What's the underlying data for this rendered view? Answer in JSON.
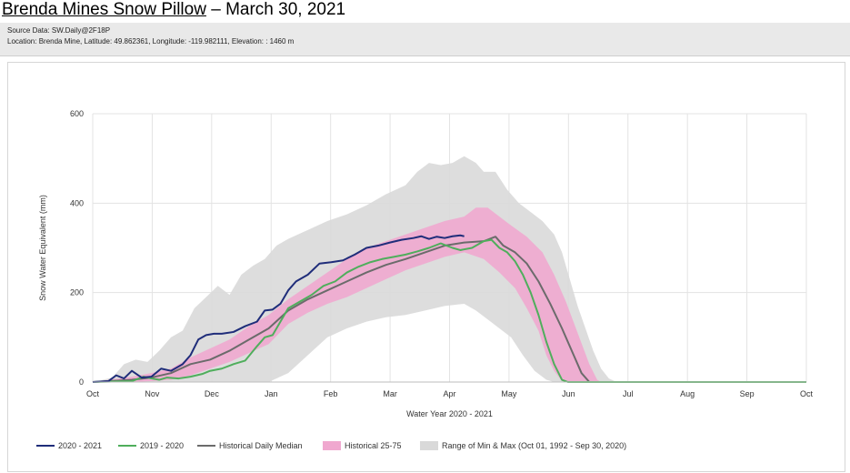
{
  "header": {
    "title_link": "Brenda Mines Snow Pillow",
    "title_rest": " – March 30, 2021",
    "source": "Source Data: SW.Daily@2F18P",
    "location": "Location: Brenda Mine, Latitude: 49.862361, Longitude: -119.982111, Elevation: : 1460 m"
  },
  "colors": {
    "s2021": "#1f2d7a",
    "s2020": "#4fae5c",
    "median": "#6b6b6b",
    "p2575": "#f0a8cf",
    "minmax": "#d9d9d9"
  },
  "chart_data": {
    "type": "line",
    "title": "",
    "xlabel": "Water Year 2020 - 2021",
    "ylabel": "Snow Water Equivalent (mm)",
    "ylim": [
      0,
      600
    ],
    "yticks": [
      0,
      200,
      400,
      600
    ],
    "xticks": [
      "Oct",
      "Nov",
      "Dec",
      "Jan",
      "Feb",
      "Mar",
      "Apr",
      "May",
      "Jun",
      "Jul",
      "Aug",
      "Sep",
      "Oct"
    ],
    "x_unit": "day of water year (0 = Oct 1)",
    "grid": true,
    "legend_position": "bottom",
    "series": [
      {
        "name": "2020 - 2021",
        "type": "line",
        "points": [
          [
            0,
            0
          ],
          [
            8,
            2
          ],
          [
            12,
            15
          ],
          [
            16,
            8
          ],
          [
            20,
            25
          ],
          [
            25,
            10
          ],
          [
            30,
            12
          ],
          [
            35,
            30
          ],
          [
            40,
            25
          ],
          [
            46,
            40
          ],
          [
            50,
            60
          ],
          [
            54,
            95
          ],
          [
            58,
            105
          ],
          [
            62,
            108
          ],
          [
            66,
            108
          ],
          [
            72,
            112
          ],
          [
            78,
            125
          ],
          [
            84,
            135
          ],
          [
            88,
            160
          ],
          [
            92,
            162
          ],
          [
            96,
            175
          ],
          [
            100,
            205
          ],
          [
            104,
            225
          ],
          [
            110,
            240
          ],
          [
            116,
            265
          ],
          [
            122,
            268
          ],
          [
            128,
            272
          ],
          [
            134,
            285
          ],
          [
            140,
            300
          ],
          [
            146,
            305
          ],
          [
            152,
            312
          ],
          [
            158,
            318
          ],
          [
            164,
            322
          ],
          [
            168,
            326
          ],
          [
            172,
            320
          ],
          [
            176,
            325
          ],
          [
            180,
            322
          ],
          [
            184,
            326
          ],
          [
            188,
            328
          ],
          [
            190,
            326
          ]
        ]
      },
      {
        "name": "2019 - 2020",
        "type": "line",
        "points": [
          [
            0,
            0
          ],
          [
            20,
            2
          ],
          [
            26,
            12
          ],
          [
            30,
            8
          ],
          [
            34,
            5
          ],
          [
            38,
            10
          ],
          [
            44,
            8
          ],
          [
            50,
            12
          ],
          [
            56,
            18
          ],
          [
            60,
            25
          ],
          [
            66,
            30
          ],
          [
            72,
            40
          ],
          [
            78,
            48
          ],
          [
            84,
            80
          ],
          [
            88,
            100
          ],
          [
            92,
            105
          ],
          [
            96,
            135
          ],
          [
            100,
            165
          ],
          [
            106,
            180
          ],
          [
            112,
            195
          ],
          [
            118,
            215
          ],
          [
            124,
            225
          ],
          [
            130,
            245
          ],
          [
            136,
            258
          ],
          [
            142,
            268
          ],
          [
            148,
            275
          ],
          [
            154,
            280
          ],
          [
            160,
            285
          ],
          [
            166,
            292
          ],
          [
            172,
            300
          ],
          [
            178,
            310
          ],
          [
            184,
            300
          ],
          [
            188,
            295
          ],
          [
            194,
            300
          ],
          [
            200,
            315
          ],
          [
            204,
            318
          ],
          [
            208,
            300
          ],
          [
            212,
            290
          ],
          [
            216,
            270
          ],
          [
            220,
            240
          ],
          [
            224,
            200
          ],
          [
            228,
            150
          ],
          [
            232,
            90
          ],
          [
            236,
            40
          ],
          [
            240,
            5
          ],
          [
            243,
            0
          ],
          [
            365,
            0
          ]
        ]
      },
      {
        "name": "Historical Daily Median",
        "type": "line",
        "points": [
          [
            0,
            0
          ],
          [
            20,
            5
          ],
          [
            30,
            10
          ],
          [
            40,
            20
          ],
          [
            50,
            40
          ],
          [
            60,
            50
          ],
          [
            70,
            70
          ],
          [
            80,
            95
          ],
          [
            90,
            120
          ],
          [
            100,
            160
          ],
          [
            110,
            185
          ],
          [
            120,
            205
          ],
          [
            130,
            225
          ],
          [
            140,
            245
          ],
          [
            150,
            262
          ],
          [
            160,
            275
          ],
          [
            170,
            290
          ],
          [
            180,
            305
          ],
          [
            190,
            312
          ],
          [
            200,
            315
          ],
          [
            206,
            325
          ],
          [
            210,
            305
          ],
          [
            216,
            290
          ],
          [
            222,
            265
          ],
          [
            228,
            225
          ],
          [
            234,
            175
          ],
          [
            240,
            120
          ],
          [
            246,
            60
          ],
          [
            250,
            20
          ],
          [
            254,
            0
          ],
          [
            365,
            0
          ]
        ]
      },
      {
        "name": "Historical 25-75",
        "type": "band",
        "upper": [
          [
            0,
            0
          ],
          [
            20,
            12
          ],
          [
            30,
            20
          ],
          [
            40,
            30
          ],
          [
            50,
            55
          ],
          [
            60,
            75
          ],
          [
            70,
            95
          ],
          [
            80,
            125
          ],
          [
            90,
            150
          ],
          [
            100,
            185
          ],
          [
            110,
            215
          ],
          [
            120,
            245
          ],
          [
            130,
            275
          ],
          [
            140,
            300
          ],
          [
            150,
            315
          ],
          [
            160,
            330
          ],
          [
            170,
            345
          ],
          [
            180,
            360
          ],
          [
            190,
            370
          ],
          [
            196,
            390
          ],
          [
            202,
            390
          ],
          [
            208,
            370
          ],
          [
            214,
            350
          ],
          [
            222,
            325
          ],
          [
            230,
            290
          ],
          [
            236,
            240
          ],
          [
            242,
            180
          ],
          [
            248,
            110
          ],
          [
            254,
            40
          ],
          [
            258,
            5
          ],
          [
            260,
            0
          ],
          [
            365,
            0
          ]
        ],
        "lower": [
          [
            0,
            0
          ],
          [
            20,
            0
          ],
          [
            30,
            2
          ],
          [
            40,
            5
          ],
          [
            50,
            15
          ],
          [
            60,
            30
          ],
          [
            70,
            45
          ],
          [
            80,
            65
          ],
          [
            90,
            85
          ],
          [
            100,
            130
          ],
          [
            110,
            155
          ],
          [
            120,
            175
          ],
          [
            130,
            190
          ],
          [
            140,
            210
          ],
          [
            150,
            230
          ],
          [
            160,
            250
          ],
          [
            170,
            265
          ],
          [
            180,
            280
          ],
          [
            190,
            290
          ],
          [
            200,
            275
          ],
          [
            208,
            245
          ],
          [
            216,
            210
          ],
          [
            222,
            165
          ],
          [
            228,
            115
          ],
          [
            232,
            60
          ],
          [
            236,
            25
          ],
          [
            240,
            2
          ],
          [
            244,
            0
          ],
          [
            365,
            0
          ]
        ]
      },
      {
        "name": "Range of Min & Max (Oct 01, 1992 - Sep 30, 2020)",
        "type": "band",
        "upper": [
          [
            0,
            0
          ],
          [
            10,
            10
          ],
          [
            16,
            40
          ],
          [
            22,
            50
          ],
          [
            28,
            45
          ],
          [
            34,
            70
          ],
          [
            40,
            100
          ],
          [
            46,
            115
          ],
          [
            52,
            165
          ],
          [
            58,
            190
          ],
          [
            64,
            215
          ],
          [
            70,
            195
          ],
          [
            76,
            240
          ],
          [
            82,
            260
          ],
          [
            88,
            275
          ],
          [
            94,
            305
          ],
          [
            100,
            320
          ],
          [
            110,
            340
          ],
          [
            120,
            360
          ],
          [
            130,
            375
          ],
          [
            140,
            395
          ],
          [
            150,
            420
          ],
          [
            160,
            440
          ],
          [
            166,
            470
          ],
          [
            172,
            490
          ],
          [
            178,
            485
          ],
          [
            184,
            490
          ],
          [
            190,
            505
          ],
          [
            196,
            490
          ],
          [
            200,
            470
          ],
          [
            206,
            470
          ],
          [
            212,
            430
          ],
          [
            218,
            400
          ],
          [
            224,
            380
          ],
          [
            230,
            360
          ],
          [
            236,
            330
          ],
          [
            240,
            290
          ],
          [
            244,
            230
          ],
          [
            248,
            170
          ],
          [
            252,
            120
          ],
          [
            256,
            70
          ],
          [
            260,
            30
          ],
          [
            264,
            8
          ],
          [
            268,
            0
          ],
          [
            365,
            0
          ]
        ],
        "lower": [
          [
            0,
            0
          ],
          [
            90,
            0
          ],
          [
            100,
            20
          ],
          [
            110,
            60
          ],
          [
            120,
            100
          ],
          [
            130,
            120
          ],
          [
            140,
            135
          ],
          [
            150,
            145
          ],
          [
            160,
            150
          ],
          [
            170,
            160
          ],
          [
            180,
            170
          ],
          [
            190,
            175
          ],
          [
            196,
            160
          ],
          [
            202,
            140
          ],
          [
            208,
            120
          ],
          [
            214,
            100
          ],
          [
            220,
            60
          ],
          [
            226,
            25
          ],
          [
            232,
            5
          ],
          [
            236,
            0
          ],
          [
            365,
            0
          ]
        ]
      }
    ]
  }
}
